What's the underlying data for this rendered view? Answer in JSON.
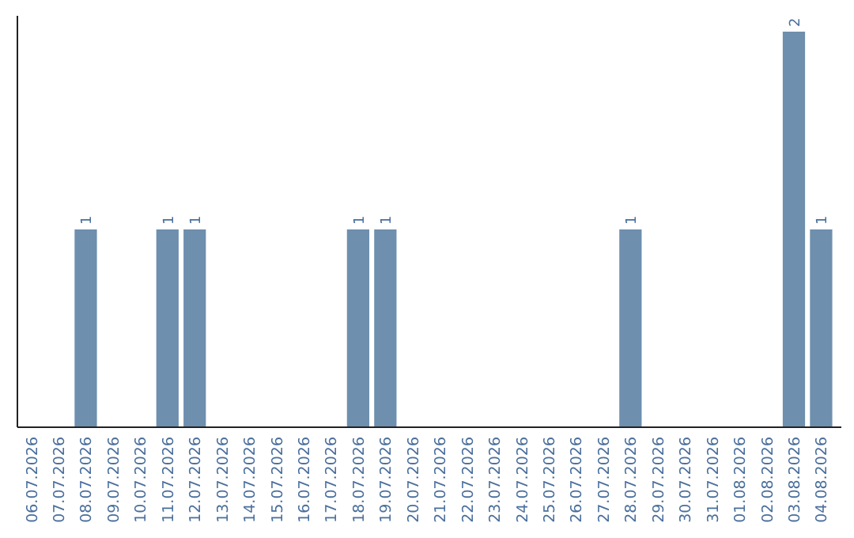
{
  "chart_data": {
    "type": "bar",
    "categories": [
      "06.07.2026",
      "07.07.2026",
      "08.07.2026",
      "09.07.2026",
      "10.07.2026",
      "11.07.2026",
      "12.07.2026",
      "13.07.2026",
      "14.07.2026",
      "15.07.2026",
      "16.07.2026",
      "17.07.2026",
      "18.07.2026",
      "19.07.2026",
      "20.07.2026",
      "21.07.2026",
      "22.07.2026",
      "23.07.2026",
      "24.07.2026",
      "25.07.2026",
      "26.07.2026",
      "27.07.2026",
      "28.07.2026",
      "29.07.2026",
      "30.07.2026",
      "31.07.2026",
      "01.08.2026",
      "02.08.2026",
      "03.08.2026",
      "04.08.2026"
    ],
    "values": [
      0,
      0,
      1,
      0,
      0,
      1,
      1,
      0,
      0,
      0,
      0,
      0,
      1,
      1,
      0,
      0,
      0,
      0,
      0,
      0,
      0,
      0,
      1,
      0,
      0,
      0,
      0,
      0,
      2,
      1
    ],
    "value_labels": [
      null,
      null,
      "1",
      null,
      null,
      "1",
      "1",
      null,
      null,
      null,
      null,
      null,
      "1",
      "1",
      null,
      null,
      null,
      null,
      null,
      null,
      null,
      null,
      "1",
      null,
      null,
      null,
      null,
      null,
      "2",
      "1"
    ],
    "color": "#6e8fae",
    "ylim": [
      0,
      2.08
    ],
    "tick_labels": "x"
  }
}
